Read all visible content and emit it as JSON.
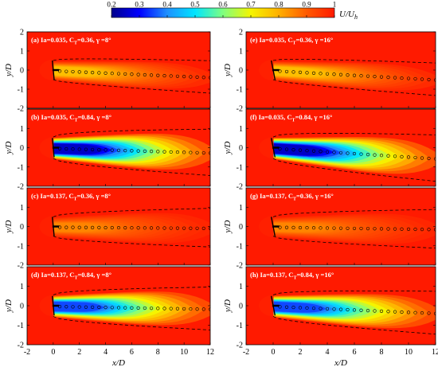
{
  "chart_data": {
    "type": "heatmap",
    "colorbar": {
      "label": "U/U",
      "label_sub": "h",
      "ticks": [
        "0.2",
        "0.3",
        "0.4",
        "0.5",
        "0.6",
        "0.7",
        "0.8",
        "0.9",
        "1"
      ],
      "range": [
        0.2,
        1.0
      ],
      "colors": [
        "#00008b",
        "#0000ff",
        "#1e90ff",
        "#00e5ff",
        "#7fff7f",
        "#f5f500",
        "#ffb000",
        "#ff5a00",
        "#ff1a00"
      ]
    },
    "background_value": 1.0,
    "xlabel": "x/D",
    "ylabel": "y/D",
    "xlim": [
      -2,
      12
    ],
    "ylim": [
      -2,
      2
    ],
    "xticks": [
      "-2",
      "0",
      "2",
      "4",
      "6",
      "8",
      "10",
      "12"
    ],
    "yticks": [
      "2",
      "1",
      "0",
      "-1",
      "-2"
    ],
    "panels": [
      {
        "label": "(a) Ia=0.035, C",
        "sub": "T",
        "rest": "=0.36, γ =8°",
        "Ia": 0.035,
        "CT": 0.36,
        "gamma": 8,
        "deficit": 0.22,
        "center_slope": -0.03,
        "wake_halfwidth_start": 0.5,
        "wake_halfwidth_end": 0.85
      },
      {
        "label": "(b) Ia=0.035, C",
        "sub": "T",
        "rest": "=0.84, γ =8°",
        "Ia": 0.035,
        "CT": 0.84,
        "gamma": 8,
        "deficit": 0.75,
        "center_slope": -0.02,
        "wake_halfwidth_start": 0.55,
        "wake_halfwidth_end": 1.2
      },
      {
        "label": "(c) Ia=0.137, C",
        "sub": "T",
        "rest": "=0.36, γ =8°",
        "Ia": 0.137,
        "CT": 0.36,
        "gamma": 8,
        "deficit": 0.15,
        "center_slope": -0.005,
        "wake_halfwidth_start": 0.5,
        "wake_halfwidth_end": 1.0
      },
      {
        "label": "(d) Ia=0.137, C",
        "sub": "T",
        "rest": "=0.84, γ =8°",
        "Ia": 0.137,
        "CT": 0.84,
        "gamma": 8,
        "deficit": 0.65,
        "center_slope": -0.012,
        "wake_halfwidth_start": 0.55,
        "wake_halfwidth_end": 1.1
      },
      {
        "label": "(e) Ia=0.035, C",
        "sub": "T",
        "rest": "=0.36, γ =16°",
        "Ia": 0.035,
        "CT": 0.36,
        "gamma": 16,
        "deficit": 0.22,
        "center_slope": -0.04,
        "wake_halfwidth_start": 0.5,
        "wake_halfwidth_end": 0.85
      },
      {
        "label": "(f) Ia=0.035, C",
        "sub": "T",
        "rest": "=0.84, γ =16°",
        "Ia": 0.035,
        "CT": 0.84,
        "gamma": 16,
        "deficit": 0.75,
        "center_slope": -0.045,
        "wake_halfwidth_start": 0.55,
        "wake_halfwidth_end": 1.2
      },
      {
        "label": "(g) Ia=0.137, C",
        "sub": "T",
        "rest": "=0.36, γ =16°",
        "Ia": 0.137,
        "CT": 0.36,
        "gamma": 16,
        "deficit": 0.15,
        "center_slope": -0.01,
        "wake_halfwidth_start": 0.5,
        "wake_halfwidth_end": 1.0
      },
      {
        "label": "(h) Ia=0.137, C",
        "sub": "T",
        "rest": "=0.84, γ =16°",
        "Ia": 0.137,
        "CT": 0.84,
        "gamma": 16,
        "deficit": 0.65,
        "center_slope": -0.03,
        "wake_halfwidth_start": 0.55,
        "wake_halfwidth_end": 1.1
      }
    ]
  }
}
